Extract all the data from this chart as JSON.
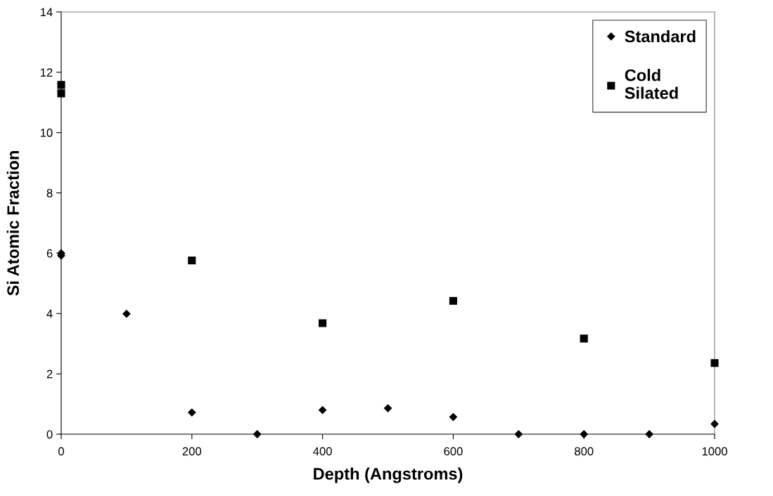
{
  "chart_data": {
    "type": "scatter",
    "xlabel": "Depth (Angstroms)",
    "ylabel": "Si Atomic Fraction",
    "xlim": [
      0,
      1000
    ],
    "xticks": [
      0,
      200,
      400,
      600,
      800,
      1000
    ],
    "ylim": [
      0,
      14
    ],
    "yticks": [
      0,
      2,
      4,
      6,
      8,
      10,
      12,
      14
    ],
    "grid": false,
    "legend": "top right",
    "series": [
      {
        "name": "Standard",
        "color": "#000000",
        "marker": "diamond",
        "x": [
          0,
          0,
          100,
          200,
          300,
          400,
          500,
          600,
          700,
          800,
          900,
          1000
        ],
        "values": [
          6.0,
          5.92,
          3.99,
          0.72,
          0,
          0.8,
          0.86,
          0.57,
          0,
          0,
          0,
          0.34
        ]
      },
      {
        "name": "Cold\nSilated",
        "color": "#000000",
        "marker": "square",
        "x": [
          0,
          0,
          200,
          400,
          600,
          800,
          1000
        ],
        "values": [
          11.58,
          11.3,
          5.76,
          3.68,
          4.42,
          3.17,
          2.36
        ]
      }
    ]
  }
}
